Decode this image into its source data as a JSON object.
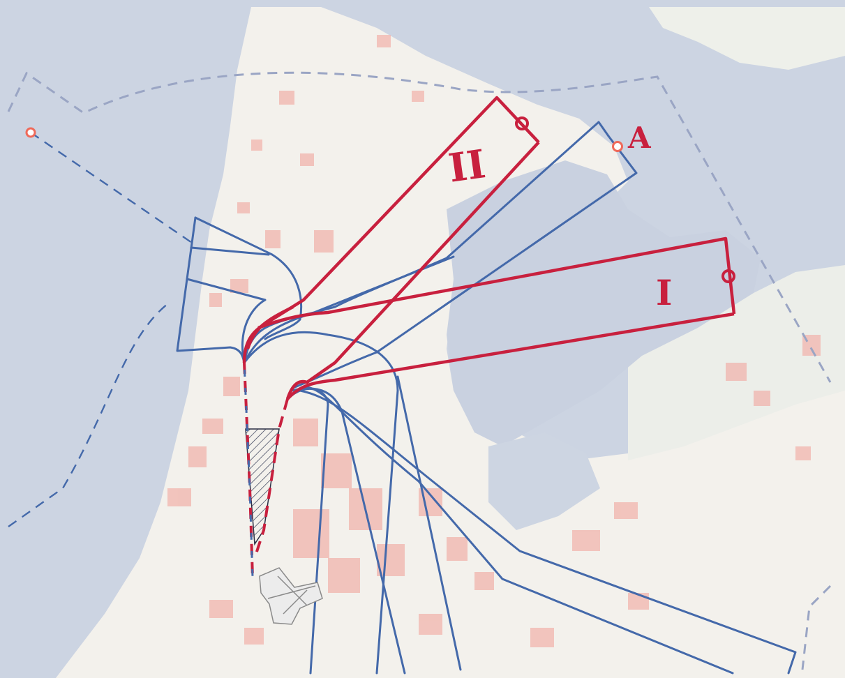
{
  "map": {
    "labels": {
      "zone_one": "I",
      "zone_two": "II",
      "point_a": "A"
    },
    "colors": {
      "water": "#ccd4e2",
      "land": "#f3f1ec",
      "urban": "#f1b4ad",
      "blue_route": "#4469aa",
      "red_corridor": "#c8203e",
      "boundary_dash": "#9aa5c4",
      "point_marker": "#ef6a5a",
      "airport": "#7a7a7a"
    },
    "icons": {
      "marker": "circle-marker-icon",
      "airport": "airport-runway-icon"
    }
  }
}
